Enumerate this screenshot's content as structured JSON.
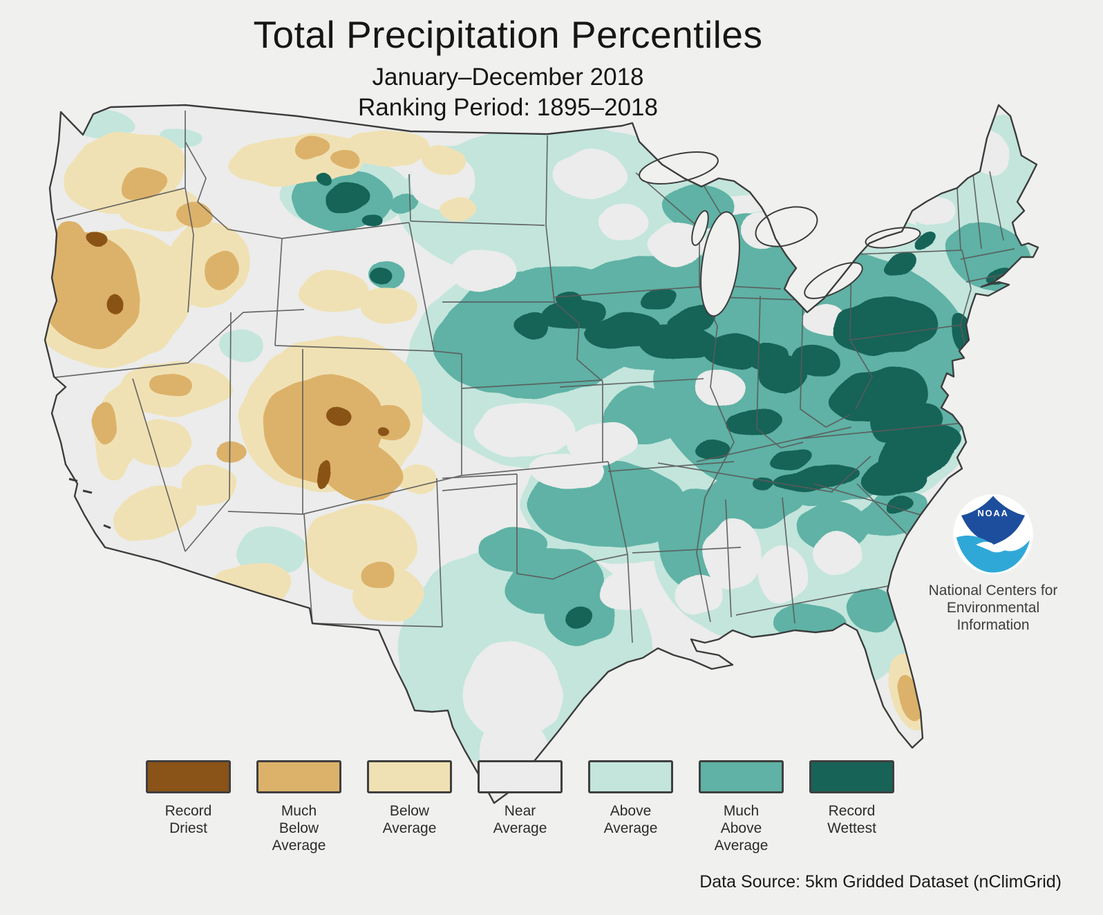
{
  "header": {
    "title": "Total Precipitation Percentiles",
    "subtitle_line1": "January–December 2018",
    "subtitle_line2": "Ranking Period: 1895–2018"
  },
  "map": {
    "type": "choropleth",
    "region": "Contiguous United States",
    "depicts": "Total precipitation percentile categories for Jan–Dec 2018 relative to 1895–2018",
    "pattern_notes": {
      "driest_areas": "Pacific Northwest (Oregon), Great Basin, Utah/western Colorado, northern Montana, southern Florida",
      "wettest_areas": "Northeastern Montana/North Dakota, Iowa–Wisconsin–Illinois band, Ohio Valley, Pennsylvania, Mid-Atlantic, Virginia, the Carolinas, New Jersey, Massachusetts, eastern Texas",
      "near_average_areas": "California, Nevada, western Dakotas, Kansas, central Texas, Gulf Coast"
    }
  },
  "legend": {
    "categories": [
      {
        "label_lines": [
          "Record",
          "Driest"
        ],
        "color": "#8a5317"
      },
      {
        "label_lines": [
          "Much",
          "Below",
          "Average"
        ],
        "color": "#dcb26a"
      },
      {
        "label_lines": [
          "Below",
          "Average"
        ],
        "color": "#f0e1b4"
      },
      {
        "label_lines": [
          "Near",
          "Average"
        ],
        "color": "#ebeceb"
      },
      {
        "label_lines": [
          "Above",
          "Average"
        ],
        "color": "#c3e5dc"
      },
      {
        "label_lines": [
          "Much",
          "Above",
          "Average"
        ],
        "color": "#5fb2a5"
      },
      {
        "label_lines": [
          "Record",
          "Wettest"
        ],
        "color": "#176358"
      }
    ]
  },
  "branding": {
    "logo_text": "NOAA",
    "org_line1": "National Centers for",
    "org_line2": "Environmental",
    "org_line3": "Information",
    "logo_dark_blue": "#1d4e9e",
    "logo_light_blue": "#2fa8d8"
  },
  "footer": {
    "data_source": "Data Source: 5km Gridded Dataset (nClimGrid)"
  },
  "colors": {
    "page_bg": "#f0f0ee",
    "land": "#ebecea",
    "stateline": "#5a5a5a",
    "coast": "#3c3c3c",
    "title": "#161616"
  }
}
